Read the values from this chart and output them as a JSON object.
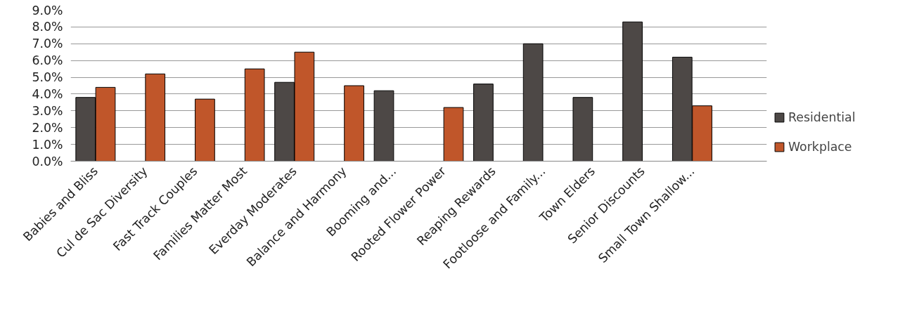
{
  "chart_data": {
    "type": "bar",
    "categories": [
      "Babies and Bliss",
      "Cul de Sac Diversity",
      "Fast Track Couples",
      "Families Matter Most",
      "Everday Moderates",
      "Balance and Harmony",
      "Booming and...",
      "Rooted Flower Power",
      "Reaping Rewards",
      "Footloose and Family...",
      "Town Elders",
      "Senior Discounts",
      "Small Town Shallow...",
      null
    ],
    "series": [
      {
        "name": "Residential",
        "color": "#4d4846",
        "values": [
          3.8,
          null,
          null,
          null,
          4.7,
          null,
          4.2,
          null,
          4.6,
          7.0,
          3.8,
          8.3,
          6.2,
          null
        ]
      },
      {
        "name": "Workplace",
        "color": "#c0562a",
        "values": [
          4.4,
          5.2,
          3.7,
          5.5,
          6.5,
          4.5,
          null,
          3.2,
          null,
          null,
          null,
          null,
          3.3,
          null
        ]
      }
    ],
    "ylim": [
      0,
      9
    ],
    "yticks": [
      {
        "value": 0,
        "label": "0.0%"
      },
      {
        "value": 1,
        "label": "1.0%"
      },
      {
        "value": 2,
        "label": "2.0%"
      },
      {
        "value": 3,
        "label": "3.0%"
      },
      {
        "value": 4,
        "label": "4.0%"
      },
      {
        "value": 5,
        "label": "5.0%"
      },
      {
        "value": 6,
        "label": "6.0%"
      },
      {
        "value": 7,
        "label": "7.0%"
      },
      {
        "value": 8,
        "label": "8.0%"
      },
      {
        "value": 9,
        "label": "9.0%"
      }
    ],
    "grid": "y",
    "legend": "right"
  }
}
